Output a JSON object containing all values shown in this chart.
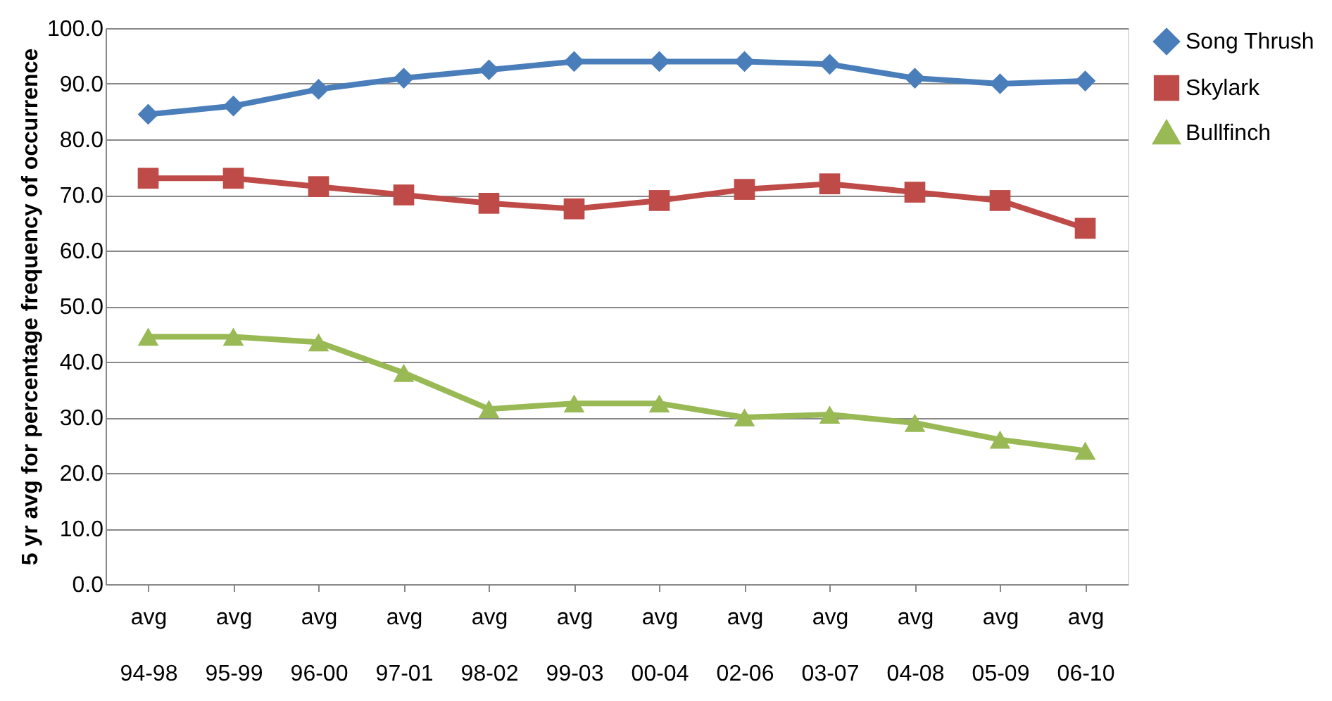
{
  "chart_data": {
    "type": "line",
    "ylabel": "5 yr avg for percentage frequency of occurrence",
    "categories": [
      "avg 94-98",
      "avg 95-99",
      "avg 96-00",
      "avg 97-01",
      "avg 98-02",
      "avg 99-03",
      "avg 00-04",
      "avg 02-06",
      "avg 03-07",
      "avg 04-08",
      "avg 05-09",
      "avg 06-10"
    ],
    "series": [
      {
        "name": "Song Thrush",
        "color": "#4a7ebb",
        "marker": "diamond",
        "values": [
          84.5,
          86,
          89,
          91,
          92.5,
          94,
          94,
          94,
          93.5,
          91,
          90,
          90.5
        ]
      },
      {
        "name": "Skylark",
        "color": "#be4b48",
        "marker": "square",
        "values": [
          73,
          73,
          71.5,
          70,
          68.5,
          67.5,
          69,
          71,
          72,
          70.5,
          69,
          64
        ]
      },
      {
        "name": "Bullfinch",
        "color": "#98b954",
        "marker": "triangle",
        "values": [
          44.5,
          44.5,
          43.5,
          38,
          31.5,
          32.5,
          32.5,
          30,
          30.5,
          29,
          26,
          24
        ]
      }
    ],
    "ylim": [
      0,
      100
    ],
    "yticks": [
      {
        "value": 0,
        "label": "0.0"
      },
      {
        "value": 10,
        "label": "10.0"
      },
      {
        "value": 20,
        "label": "20.0"
      },
      {
        "value": 30,
        "label": "30.0"
      },
      {
        "value": 40,
        "label": "40.0"
      },
      {
        "value": 50,
        "label": "50.0"
      },
      {
        "value": 60,
        "label": "60.0"
      },
      {
        "value": 70,
        "label": "70.0"
      },
      {
        "value": 80,
        "label": "80.0"
      },
      {
        "value": 90,
        "label": "90.0"
      },
      {
        "value": 100,
        "label": "100.0"
      }
    ],
    "grid": "y",
    "legend": "right",
    "line_style": "solid"
  }
}
